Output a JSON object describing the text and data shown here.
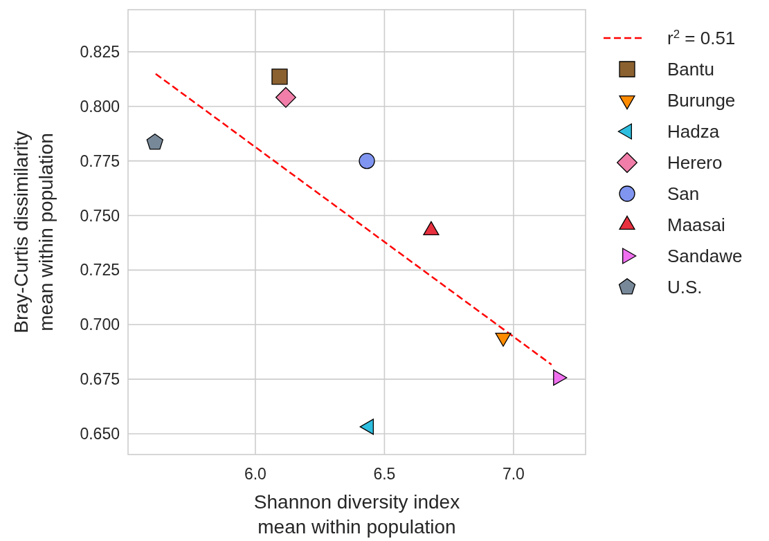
{
  "chart_data": {
    "type": "scatter",
    "xlabel": "Shannon diversity index\nmean within population",
    "ylabel": "Bray-Curtis dissimilarity\nmean within population",
    "xlim": [
      5.507,
      7.279
    ],
    "xticks": [
      {
        "value": 6.0,
        "label": "6.0"
      },
      {
        "value": 6.5,
        "label": "6.5"
      },
      {
        "value": 7.0,
        "label": "7.0"
      }
    ],
    "ylim": [
      0.6405,
      0.8443
    ],
    "yticks": [
      {
        "value": 0.65,
        "label": "0.650"
      },
      0.675,
      {
        "value": 0.7,
        "label": "0.700"
      },
      0.725,
      {
        "value": 0.75,
        "label": "0.750"
      },
      0.775,
      {
        "value": 0.8,
        "label": "0.800"
      },
      0.825
    ],
    "grid": true,
    "legend": "top right",
    "series": [
      {
        "name": "r$^{2}$ = 0.51",
        "type": "line",
        "line_style": "dashed",
        "color": "#ff0000",
        "x": [
          5.614,
          7.147
        ],
        "values": [
          0.8149,
          0.6817
        ]
      },
      {
        "name": "Bantu",
        "marker": "square",
        "color": "#8b6130",
        "x": [
          6.094
        ],
        "values": [
          0.8136
        ]
      },
      {
        "name": "Burunge",
        "marker": "triangle-down",
        "color": "#ff8c00",
        "x": [
          6.96
        ],
        "values": [
          0.6941
        ]
      },
      {
        "name": "Hadza",
        "marker": "triangle-left",
        "color": "#2ebfe0",
        "x": [
          6.44
        ],
        "values": [
          0.6532
        ]
      },
      {
        "name": "Herero",
        "marker": "diamond",
        "color": "#f07ea8",
        "x": [
          6.118
        ],
        "values": [
          0.8041
        ]
      },
      {
        "name": "San",
        "marker": "circle",
        "color": "#8095f0",
        "x": [
          6.432
        ],
        "values": [
          0.775
        ]
      },
      {
        "name": "Maasai",
        "marker": "triangle",
        "color": "#e8303f",
        "x": [
          6.681
        ],
        "values": [
          0.7432
        ]
      },
      {
        "name": "Sandawe",
        "marker": "triangle-right",
        "color": "#f070f0",
        "x": [
          7.172
        ],
        "values": [
          0.6757
        ]
      },
      {
        "name": "U.S.",
        "color": "#778899",
        "x": [
          5.611
        ],
        "values": [
          0.7835
        ]
      }
    ]
  }
}
